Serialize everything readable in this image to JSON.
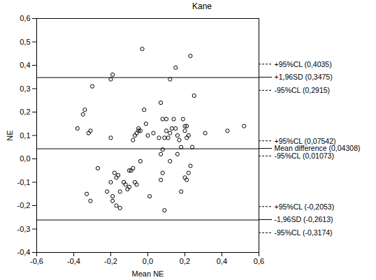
{
  "chart_data": {
    "type": "scatter",
    "title": "Kane",
    "x_label": "Mean NE",
    "y_label": "NE",
    "marker": "circle",
    "color": "#000000",
    "grid": false,
    "x": [
      -0.38,
      -0.35,
      -0.34,
      -0.32,
      -0.31,
      -0.3,
      -0.33,
      -0.31,
      -0.27,
      -0.2,
      -0.19,
      -0.2,
      -0.22,
      -0.2,
      -0.19,
      -0.19,
      -0.18,
      -0.17,
      -0.16,
      -0.17,
      -0.15,
      -0.15,
      -0.13,
      -0.12,
      -0.11,
      -0.1,
      -0.09,
      -0.08,
      -0.07,
      -0.06,
      -0.08,
      -0.07,
      -0.06,
      -0.05,
      -0.04,
      -0.05,
      -0.03,
      -0.02,
      -0.01,
      0,
      0.01,
      -0.04,
      0.06,
      0.07,
      0.08,
      0.1,
      0.09,
      0.08,
      0.08,
      0.07,
      0.09,
      0.1,
      0.11,
      0.12,
      0.13,
      0.12,
      0.12,
      0.15,
      0.15,
      0.14,
      0.16,
      0.17,
      0.18,
      0.18,
      0.19,
      0.2,
      0.21,
      0.2,
      0.21,
      0.22,
      0.23,
      0.24,
      0.23,
      0.25,
      0.21,
      0.22,
      0.31,
      0.43,
      0.52,
      0.16,
      0.2,
      -0.1,
      0.03,
      0.07
    ],
    "y": [
      0.13,
      0.19,
      0.21,
      0.11,
      0.12,
      0.31,
      -0.15,
      -0.18,
      -0.04,
      0.34,
      0.36,
      0.09,
      -0.14,
      -0.1,
      -0.16,
      -0.18,
      -0.06,
      -0.08,
      -0.07,
      -0.2,
      -0.21,
      -0.14,
      -0.1,
      -0.11,
      -0.13,
      -0.12,
      -0.05,
      -0.04,
      -0.1,
      -0.11,
      0.08,
      0.1,
      0.11,
      0.12,
      0.12,
      0.13,
      0.47,
      0.21,
      0.15,
      0.1,
      -0.16,
      -0.01,
      0.09,
      0.24,
      0.17,
      0.17,
      0.09,
      0.04,
      -0.06,
      -0.09,
      -0.22,
      0.12,
      0.09,
      0.11,
      0.13,
      0.34,
      -0.01,
      0.39,
      0.13,
      0.17,
      0.1,
      0.08,
      0.05,
      -0.14,
      0.17,
      0.12,
      0.09,
      -0.08,
      -0.09,
      -0.06,
      -0.03,
      0.05,
      0.44,
      0.27,
      0.14,
      0.1,
      0.11,
      0.12,
      0.14,
      0.02,
      0.14,
      -0.05,
      0.11,
      0.02
    ],
    "xlim": [
      -0.6,
      0.6
    ],
    "ylim": [
      -0.4,
      0.6
    ],
    "xticks": [
      {
        "value": -0.6,
        "label": "-0,6"
      },
      {
        "value": -0.4,
        "label": "-0,4"
      },
      {
        "value": -0.2,
        "label": "-0,2"
      },
      {
        "value": 0,
        "label": "0,0"
      },
      {
        "value": 0.2,
        "label": "0,2"
      },
      {
        "value": 0.4,
        "label": "0,4"
      },
      {
        "value": 0.6,
        "label": "0,6"
      }
    ],
    "yticks": [
      {
        "value": -0.4,
        "label": "-0,4"
      },
      {
        "value": -0.3,
        "label": "-0,3"
      },
      {
        "value": -0.2,
        "label": "-0,2"
      },
      {
        "value": -0.1,
        "label": "-0,1"
      },
      {
        "value": 0,
        "label": "0,0"
      },
      {
        "value": 0.1,
        "label": "0,1"
      },
      {
        "value": 0.2,
        "label": "0,2"
      },
      {
        "value": 0.3,
        "label": "0,3"
      },
      {
        "value": 0.4,
        "label": "0,4"
      },
      {
        "value": 0.5,
        "label": "0,5"
      },
      {
        "value": 0.6,
        "label": "0,6"
      }
    ],
    "lines": [
      {
        "value": 0.4035,
        "label": "+95%CL (0,4035)",
        "line_style": "dashed"
      },
      {
        "value": 0.3475,
        "label": "+1,96SD (0,3475)",
        "line_style": "solid"
      },
      {
        "value": 0.2915,
        "label": "-95%CL (0,2915)",
        "line_style": "dashed"
      },
      {
        "value": 0.07542,
        "label": "+95%CL (0,07542)",
        "line_style": "dashed"
      },
      {
        "value": 0.04308,
        "label": "Mean difference (0,04308)",
        "line_style": "solid"
      },
      {
        "value": 0.01073,
        "label": "-95%CL (0,01073)",
        "line_style": "dashed"
      },
      {
        "value": -0.2053,
        "label": "+95%CL (-0,2053)",
        "line_style": "dashed"
      },
      {
        "value": -0.2613,
        "label": "-1,96SD (-0,2613)",
        "line_style": "solid"
      },
      {
        "value": -0.3174,
        "label": "-95%CL (-0,3174)",
        "line_style": "dashed"
      }
    ]
  }
}
